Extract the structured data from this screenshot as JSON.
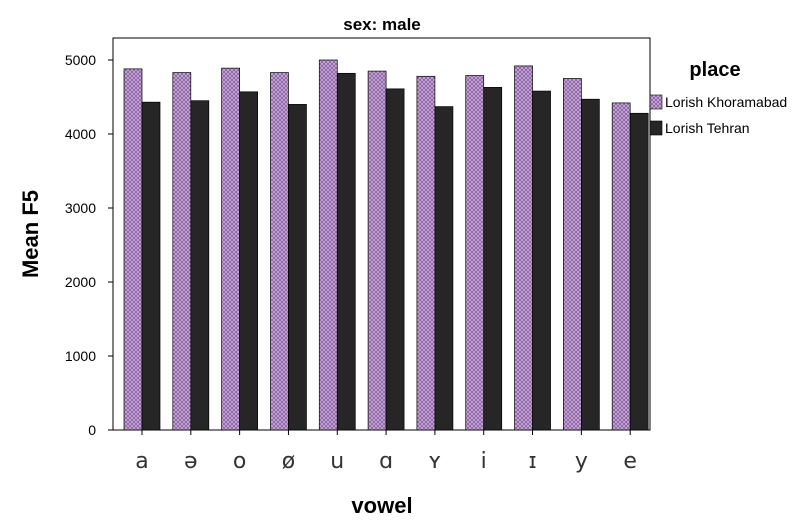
{
  "chart_data": {
    "type": "bar",
    "title": "sex: male",
    "xlabel": "vowel",
    "ylabel": "Mean F5",
    "ylim": [
      0,
      5000
    ],
    "yticks": [
      0,
      1000,
      2000,
      3000,
      4000,
      5000
    ],
    "grid": false,
    "legend": {
      "title": "place",
      "position": "right"
    },
    "categories": [
      "a",
      "ə",
      "o",
      "ø",
      "u",
      "ɑ",
      "ʏ",
      "i",
      "ɪ",
      "y",
      "e"
    ],
    "series": [
      {
        "name": "Lorish Khoramabad",
        "color": "#c9a8dc",
        "pattern": "crosshatch",
        "values": [
          4880,
          4830,
          4890,
          4830,
          5000,
          4850,
          4780,
          4790,
          4920,
          4750,
          4420
        ]
      },
      {
        "name": "Lorish Tehran",
        "color": "#262626",
        "values": [
          4430,
          4450,
          4570,
          4400,
          4820,
          4610,
          4370,
          4630,
          4580,
          4470,
          4280
        ]
      }
    ]
  }
}
